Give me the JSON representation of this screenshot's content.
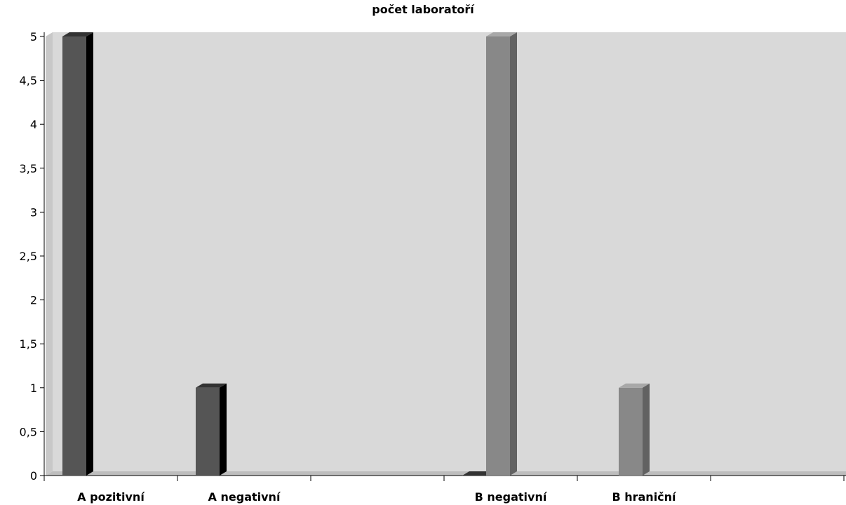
{
  "chart_data": {
    "type": "bar",
    "title": "počet laboratoří",
    "xlabel": "",
    "ylabel": "",
    "ylim": [
      0,
      5
    ],
    "yticks": [
      "0",
      "0,5",
      "1",
      "1,5",
      "2",
      "2,5",
      "3",
      "3,5",
      "4",
      "4,5",
      "5"
    ],
    "categories": [
      "A pozitivní",
      "A negativní",
      "",
      "B negativní",
      "B hraniční",
      ""
    ],
    "bars": [
      {
        "category": "A pozitivní",
        "value": 5,
        "color": "#555555"
      },
      {
        "category": "A negativní",
        "value": 1,
        "color": "#555555"
      },
      {
        "category": "B negativní",
        "value": 0,
        "color": "#555555"
      },
      {
        "category": "B negativní",
        "value": 5,
        "color": "#888888"
      },
      {
        "category": "B hraniční",
        "value": 1,
        "color": "#888888"
      }
    ],
    "grid": false,
    "colors": {
      "plot_background": "#d9d9d9",
      "floor": "#bdbdbd",
      "wall_side": "#c8c8c8",
      "dark_series": "#555555",
      "light_series": "#888888"
    }
  }
}
